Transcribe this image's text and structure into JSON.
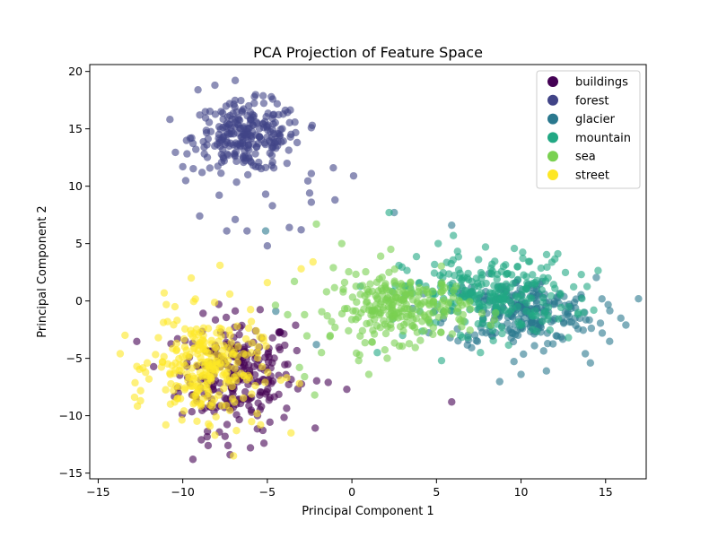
{
  "chart_data": {
    "type": "scatter",
    "title": "PCA Projection of Feature Space",
    "xlabel": "Principal Component 1",
    "ylabel": "Principal Component 2",
    "xlim": [
      -15.5,
      17.4
    ],
    "ylim": [
      -15.5,
      20.6
    ],
    "xticks": [
      -15,
      -10,
      -5,
      0,
      5,
      10,
      15
    ],
    "yticks": [
      -15,
      -10,
      -5,
      0,
      5,
      10,
      15,
      20
    ],
    "grid": false,
    "legend_position": "top-right",
    "marker_opacity": 0.6,
    "series": [
      {
        "name": "buildings",
        "color": "#440154",
        "cluster": {
          "center": [
            -6.8,
            -6.3
          ],
          "spread": [
            1.7,
            2.4
          ],
          "count": 250
        },
        "points": [
          [
            -9.4,
            -13.8
          ],
          [
            -8.5,
            -12.6
          ],
          [
            -6.0,
            -12.8
          ],
          [
            -5.2,
            -12.4
          ],
          [
            -7.5,
            -11.8
          ],
          [
            5.9,
            -8.8
          ],
          [
            -1.4,
            -7.1
          ],
          [
            -0.3,
            -7.7
          ],
          [
            -8.9,
            -12.1
          ],
          [
            -7.2,
            -13.4
          ]
        ]
      },
      {
        "name": "forest",
        "color": "#414487",
        "cluster": {
          "center": [
            -6.2,
            14.3
          ],
          "spread": [
            1.6,
            1.5
          ],
          "count": 250
        },
        "points": [
          [
            -9.1,
            18.4
          ],
          [
            -8.1,
            18.8
          ],
          [
            -6.1,
            17.0
          ],
          [
            -2.4,
            15.1
          ],
          [
            -9.0,
            7.4
          ],
          [
            -7.4,
            6.1
          ],
          [
            -6.9,
            7.1
          ],
          [
            -5.0,
            4.8
          ],
          [
            -3.7,
            6.4
          ],
          [
            -2.5,
            9.4
          ],
          [
            -2.4,
            8.6
          ],
          [
            -1.0,
            8.8
          ],
          [
            0.1,
            10.9
          ],
          [
            -1.1,
            11.6
          ],
          [
            -2.4,
            11.1
          ],
          [
            -4.7,
            8.3
          ],
          [
            -5.1,
            9.3
          ],
          [
            -10.0,
            11.7
          ],
          [
            -3.0,
            6.2
          ],
          [
            -6.2,
            6.1
          ]
        ]
      },
      {
        "name": "glacier",
        "color": "#2a788e",
        "cluster": {
          "center": [
            10.0,
            -1.0
          ],
          "spread": [
            2.2,
            1.5
          ],
          "count": 250
        },
        "points": [
          [
            2.5,
            7.7
          ],
          [
            5.9,
            6.6
          ],
          [
            14.1,
            -5.4
          ],
          [
            11.5,
            -6.1
          ],
          [
            10.0,
            -6.4
          ],
          [
            16.2,
            -2.1
          ],
          [
            15.9,
            -1.5
          ],
          [
            14.8,
            -2.8
          ],
          [
            13.8,
            -4.6
          ],
          [
            -5.1,
            6.1
          ],
          [
            -2.1,
            -3.8
          ],
          [
            -4.5,
            -0.9
          ]
        ]
      },
      {
        "name": "mountain",
        "color": "#22a884",
        "cluster": {
          "center": [
            8.0,
            0.6
          ],
          "spread": [
            2.5,
            1.7
          ],
          "count": 250
        },
        "points": [
          [
            5.1,
            5.0
          ],
          [
            6.0,
            5.7
          ],
          [
            7.9,
            4.7
          ],
          [
            9.8,
            3.0
          ],
          [
            11.6,
            2.0
          ],
          [
            13.6,
            0.2
          ],
          [
            14.3,
            -0.8
          ],
          [
            12.8,
            -3.2
          ],
          [
            2.2,
            7.7
          ],
          [
            7.6,
            -4.5
          ],
          [
            5.3,
            -5.2
          ],
          [
            3.0,
            -3.0
          ],
          [
            1.5,
            -4.5
          ]
        ]
      },
      {
        "name": "sea",
        "color": "#7ad151",
        "cluster": {
          "center": [
            3.0,
            -0.6
          ],
          "spread": [
            2.0,
            1.4
          ],
          "count": 250
        },
        "points": [
          [
            -2.2,
            -8.2
          ],
          [
            -0.6,
            5.0
          ],
          [
            2.3,
            4.5
          ],
          [
            1.7,
            3.9
          ],
          [
            -2.1,
            6.7
          ],
          [
            -1.1,
            2.9
          ],
          [
            -3.4,
            1.7
          ],
          [
            -2.8,
            -1.2
          ],
          [
            -3.1,
            -5.8
          ],
          [
            -1.8,
            -4.5
          ],
          [
            -1.3,
            -3.1
          ],
          [
            -0.2,
            -2.6
          ],
          [
            0.4,
            -5.2
          ],
          [
            1.0,
            -6.4
          ],
          [
            1.2,
            -3.6
          ],
          [
            2.2,
            -1.2
          ],
          [
            -1.5,
            0.8
          ],
          [
            -2.8,
            -6.6
          ],
          [
            -3.8,
            -1.2
          ],
          [
            -1.2,
            -1.8
          ]
        ]
      },
      {
        "name": "street",
        "color": "#fde725",
        "cluster": {
          "center": [
            -8.6,
            -5.8
          ],
          "spread": [
            1.6,
            2.2
          ],
          "count": 250
        },
        "points": [
          [
            -13.7,
            -4.6
          ],
          [
            -12.5,
            -8.7
          ],
          [
            -11.2,
            -5.3
          ],
          [
            -11.0,
            -10.8
          ],
          [
            -10.3,
            -8.5
          ],
          [
            -8.1,
            -11.7
          ],
          [
            -7.0,
            -13.5
          ],
          [
            -3.6,
            -11.5
          ],
          [
            -3.1,
            -7.2
          ],
          [
            -3.0,
            2.8
          ],
          [
            -2.3,
            3.4
          ],
          [
            -7.8,
            3.1
          ],
          [
            -5.0,
            1.6
          ],
          [
            -11.1,
            0.7
          ],
          [
            -10.9,
            -1.8
          ],
          [
            -9.5,
            2.0
          ],
          [
            -12.0,
            -6.8
          ],
          [
            -4.2,
            -6.9
          ],
          [
            -5.4,
            -10.8
          ],
          [
            -12.1,
            -5.4
          ]
        ]
      }
    ]
  }
}
